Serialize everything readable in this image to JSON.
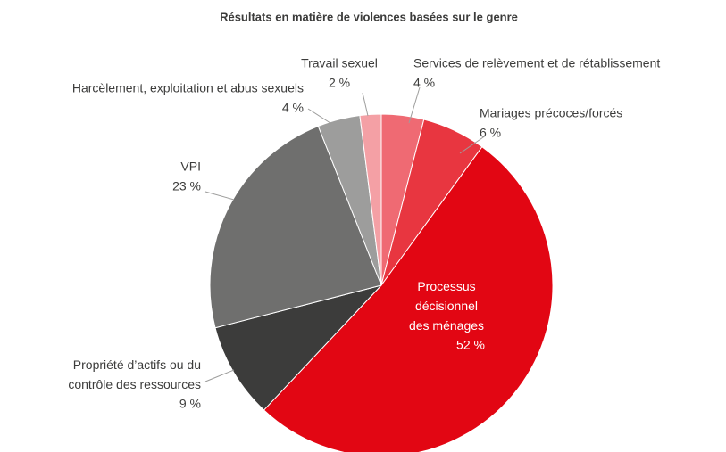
{
  "chart_data": {
    "type": "pie",
    "title": "Résultats en matière de violences basées sur le genre",
    "categories": [
      "Services de relèvement et de rétablissement",
      "Mariages précoces/forcés",
      "Processus décisionnel des ménages",
      "Propriété d’actifs ou du contrôle des ressources",
      "VPI",
      "Harcèlement, exploitation et abus sexuels",
      "Travail sexuel"
    ],
    "values": [
      4,
      6,
      52,
      9,
      23,
      4,
      2
    ],
    "value_labels": [
      "4 %",
      "6 %",
      "52 %",
      "9 %",
      "23 %",
      "4 %",
      "2 %"
    ],
    "colors": [
      "#ef6a73",
      "#e83640",
      "#e20613",
      "#3c3c3b",
      "#6f6f6e",
      "#9d9d9c",
      "#f4a0a5"
    ]
  }
}
